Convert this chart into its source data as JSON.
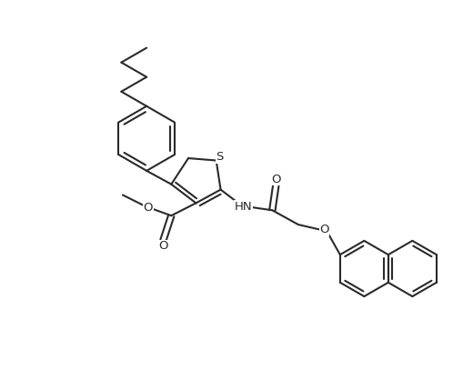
{
  "background_color": "#ffffff",
  "line_color": "#2a2a2a",
  "line_width": 1.5,
  "figsize": [
    4.98,
    4.29
  ],
  "dpi": 100,
  "text_fontsize": 9.5,
  "xlim": [
    0,
    9.96
  ],
  "ylim": [
    0,
    8.58
  ]
}
